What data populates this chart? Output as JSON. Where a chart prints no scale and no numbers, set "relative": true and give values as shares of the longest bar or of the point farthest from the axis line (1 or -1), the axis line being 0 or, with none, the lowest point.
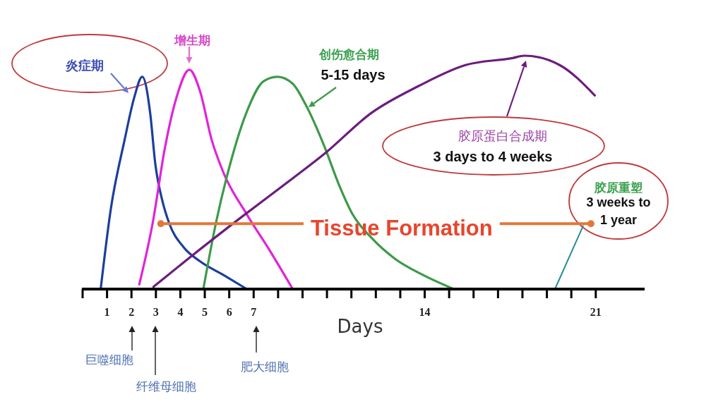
{
  "chart_data": {
    "type": "line",
    "relative": true,
    "xlabel": "Days",
    "xlim": [
      0,
      23
    ],
    "xticks": [
      {
        "value": 0,
        "label": null
      },
      1,
      2,
      3,
      4,
      5,
      6,
      7,
      {
        "value": 8,
        "label": null
      },
      {
        "value": 9,
        "label": null
      },
      {
        "value": 10,
        "label": null
      },
      {
        "value": 11,
        "label": null
      },
      {
        "value": 12,
        "label": null
      },
      {
        "value": 13,
        "label": null
      },
      14,
      {
        "value": 15,
        "label": null
      },
      {
        "value": 16,
        "label": null
      },
      {
        "value": 17,
        "label": null
      },
      {
        "value": 18,
        "label": null
      },
      {
        "value": 19,
        "label": null
      },
      {
        "value": 20,
        "label": null
      },
      21
    ],
    "series": [
      {
        "color": "#1c3f9b",
        "x": [
          0.74,
          1.15,
          1.72,
          2.11,
          2.44,
          2.77,
          2.97,
          3.26,
          3.55,
          4.13,
          4.79,
          5.77,
          6.72
        ],
        "values": [
          0,
          0.34,
          0.64,
          0.82,
          0.91,
          0.75,
          0.54,
          0.38,
          0.28,
          0.18,
          0.12,
          0.06,
          0
        ]
      },
      {
        "color": "#e024d8",
        "x": [
          2.32,
          2.88,
          3.36,
          3.84,
          4.37,
          4.8,
          5.28,
          5.76,
          6.72,
          7.69,
          8.6
        ],
        "values": [
          0.02,
          0.29,
          0.6,
          0.82,
          0.94,
          0.85,
          0.64,
          0.5,
          0.32,
          0.16,
          0
        ]
      },
      {
        "color": "#3d9a48",
        "x": [
          4.94,
          5.47,
          6.05,
          6.72,
          7.4,
          7.97,
          8.6,
          9.13,
          9.9,
          10.48,
          11.05,
          11.82,
          12.78,
          13.94,
          15.19
        ],
        "values": [
          0,
          0.29,
          0.54,
          0.76,
          0.89,
          0.91,
          0.88,
          0.79,
          0.61,
          0.45,
          0.32,
          0.22,
          0.13,
          0.06,
          0
        ]
      },
      {
        "color": "#6b1d7d",
        "x": [
          2.9,
          4.5,
          6.52,
          8.54,
          9.9,
          11.82,
          13.75,
          15.67,
          17.6,
          18.08,
          19.52,
          20.96
        ],
        "values": [
          0.01,
          0.145,
          0.31,
          0.47,
          0.58,
          0.755,
          0.87,
          0.96,
          0.99,
          1,
          0.96,
          0.83
        ]
      },
      {
        "color": "#2a8c99",
        "x": [
          19.33,
          20.48
        ],
        "values": [
          0,
          0.27
        ]
      },
      {
        "name": "Tissue Formation",
        "color": "#e0783a",
        "marker": "circle",
        "x": [
          3.2,
          20.8
        ],
        "values": [
          0.28,
          0.28
        ]
      }
    ],
    "annotations": [
      "炎症期",
      "增生期",
      "创伤愈合期",
      "5-15 days",
      "胶原蛋白合成期",
      "3 days to 4 weeks",
      "胶原重塑",
      "3 weeks to 1 year",
      "巨噬细胞",
      "纤维母细胞",
      "肥大细胞"
    ]
  }
}
